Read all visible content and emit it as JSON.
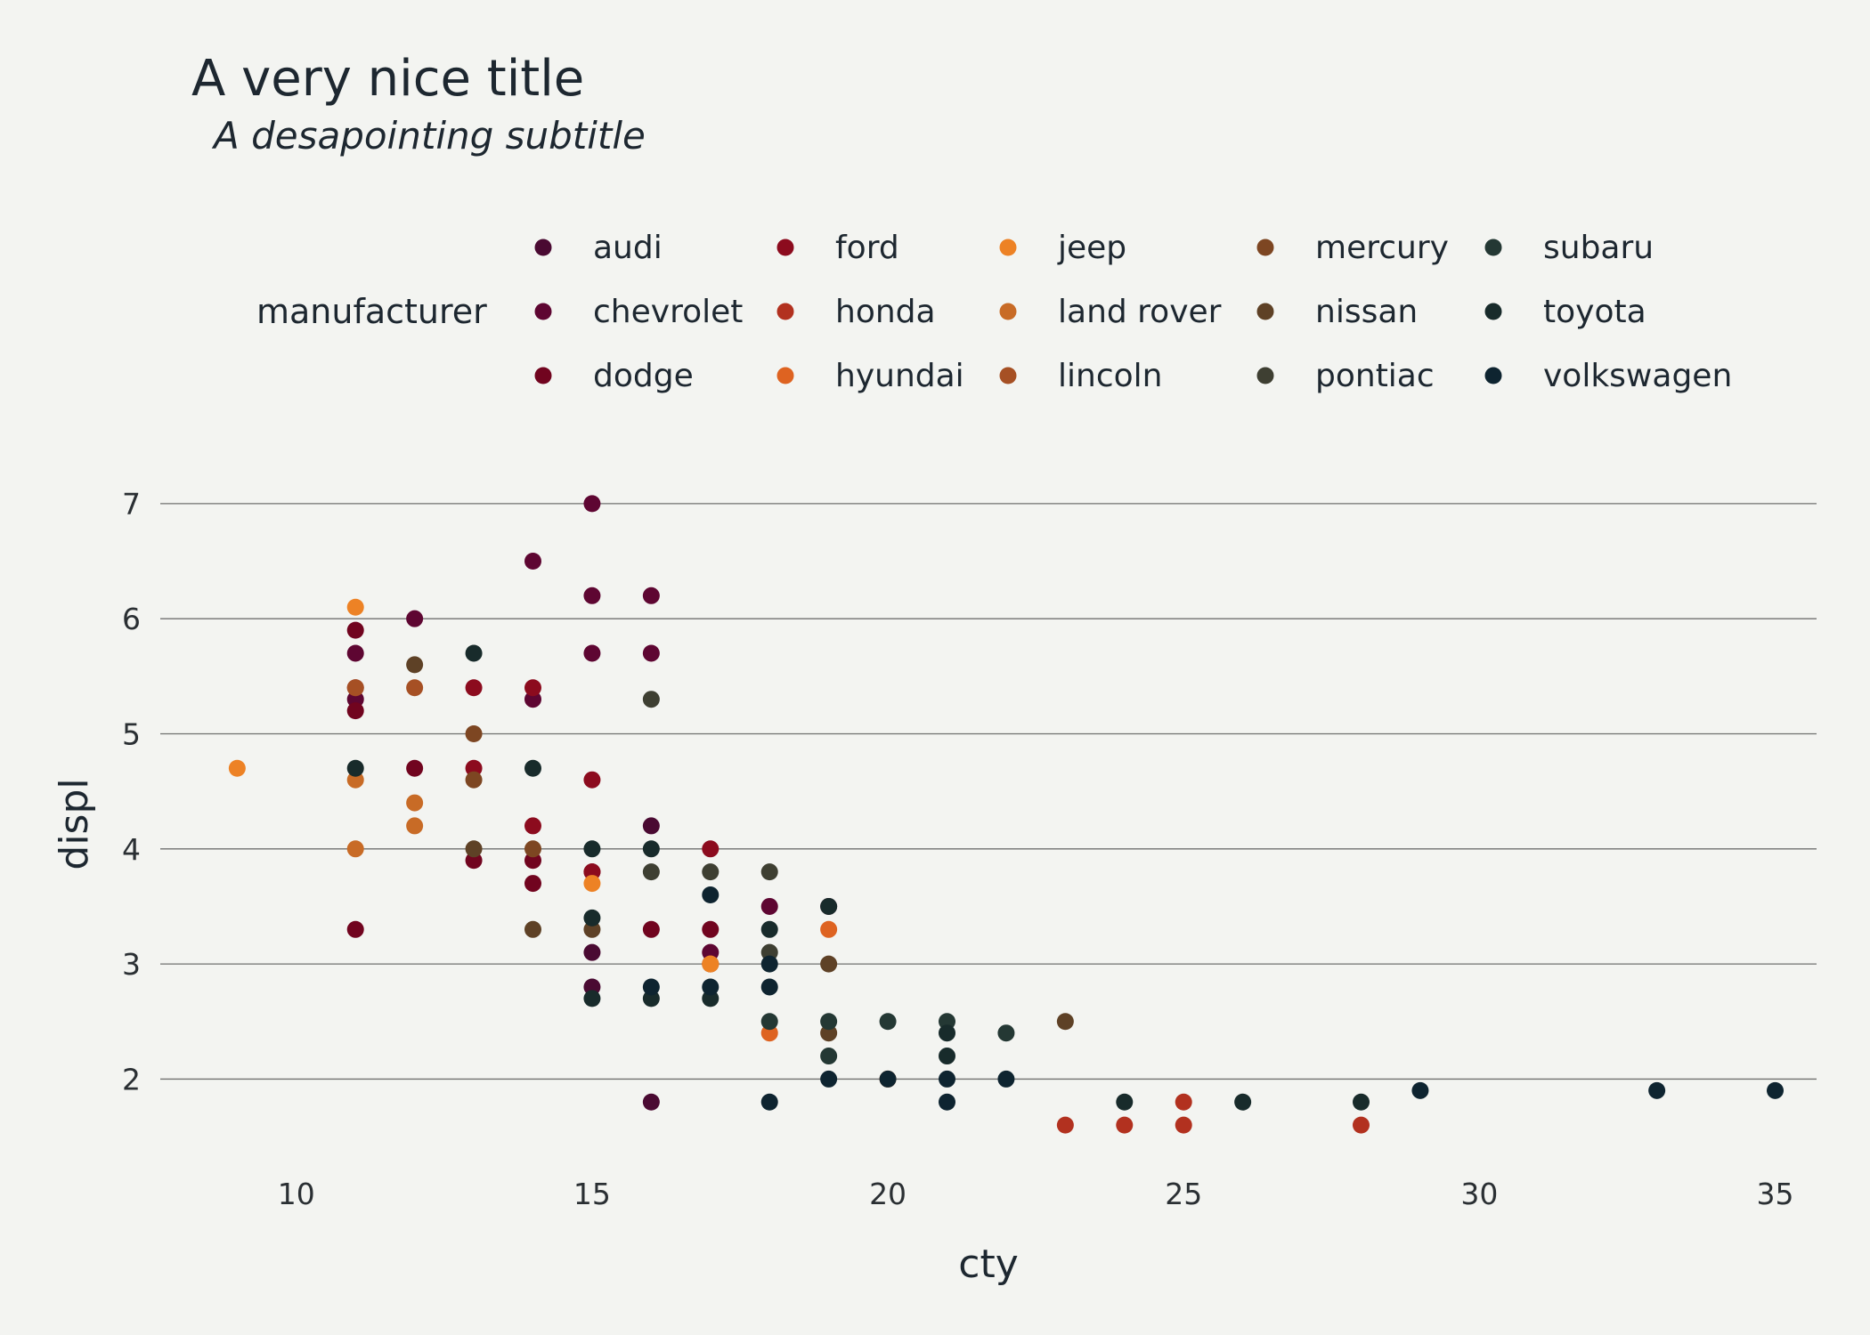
{
  "chart_data": {
    "type": "scatter",
    "title": "A very nice title",
    "subtitle": "A desapointing subtitle",
    "xlabel": "cty",
    "ylabel": "displ",
    "xlim": [
      7.7,
      35.7
    ],
    "ylim": [
      1.4,
      7.2
    ],
    "xticks": [
      10,
      15,
      20,
      25,
      30,
      35
    ],
    "yticks": [
      2,
      3,
      4,
      5,
      6,
      7
    ],
    "grid": "horizontal",
    "legend": {
      "title": "manufacturer",
      "position": "top"
    },
    "series": [
      {
        "name": "audi",
        "color": "#4a0a32",
        "points": [
          [
            16,
            1.8
          ],
          [
            16,
            4.2
          ],
          [
            15,
            2.8
          ],
          [
            15,
            3.1
          ],
          [
            17,
            3.0
          ]
        ]
      },
      {
        "name": "chevrolet",
        "color": "#5e0632",
        "points": [
          [
            15,
            7.0
          ],
          [
            14,
            6.5
          ],
          [
            15,
            6.2
          ],
          [
            16,
            6.2
          ],
          [
            12,
            6.0
          ],
          [
            11,
            5.7
          ],
          [
            15,
            5.7
          ],
          [
            16,
            5.7
          ],
          [
            11,
            5.3
          ],
          [
            14,
            5.3
          ],
          [
            19,
            3.5
          ],
          [
            17,
            3.1
          ],
          [
            18,
            3.5
          ]
        ]
      },
      {
        "name": "dodge",
        "color": "#71041f",
        "points": [
          [
            11,
            5.9
          ],
          [
            11,
            5.2
          ],
          [
            11,
            3.3
          ],
          [
            12,
            4.7
          ],
          [
            13,
            3.9
          ],
          [
            14,
            3.9
          ],
          [
            14,
            3.7
          ],
          [
            15,
            3.8
          ],
          [
            16,
            3.3
          ],
          [
            17,
            3.3
          ]
        ]
      },
      {
        "name": "ford",
        "color": "#8c0b1e",
        "points": [
          [
            13,
            5.4
          ],
          [
            14,
            5.4
          ],
          [
            13,
            4.7
          ],
          [
            14,
            4.2
          ],
          [
            15,
            4.6
          ],
          [
            17,
            4.0
          ],
          [
            15,
            3.8
          ],
          [
            11,
            5.4
          ]
        ]
      },
      {
        "name": "honda",
        "color": "#b2311f",
        "points": [
          [
            23,
            1.6
          ],
          [
            24,
            1.6
          ],
          [
            25,
            1.6
          ],
          [
            25,
            1.8
          ],
          [
            28,
            1.6
          ]
        ]
      },
      {
        "name": "hyundai",
        "color": "#de6321",
        "points": [
          [
            18,
            2.4
          ],
          [
            19,
            3.3
          ],
          [
            20,
            2.0
          ],
          [
            17,
            3.0
          ]
        ]
      },
      {
        "name": "jeep",
        "color": "#ed8225",
        "points": [
          [
            9,
            4.7
          ],
          [
            11,
            6.1
          ],
          [
            15,
            3.7
          ],
          [
            17,
            3.0
          ]
        ]
      },
      {
        "name": "land rover",
        "color": "#c86b26",
        "points": [
          [
            11,
            4.0
          ],
          [
            11,
            4.6
          ],
          [
            12,
            4.2
          ],
          [
            12,
            4.4
          ]
        ]
      },
      {
        "name": "lincoln",
        "color": "#a65024",
        "points": [
          [
            11,
            5.4
          ],
          [
            12,
            5.4
          ]
        ]
      },
      {
        "name": "mercury",
        "color": "#7d4622",
        "points": [
          [
            13,
            4.6
          ],
          [
            13,
            5.0
          ],
          [
            14,
            4.0
          ]
        ]
      },
      {
        "name": "nissan",
        "color": "#5e4126",
        "points": [
          [
            12,
            5.6
          ],
          [
            13,
            4.0
          ],
          [
            14,
            3.3
          ],
          [
            15,
            3.3
          ],
          [
            19,
            3.0
          ],
          [
            19,
            2.4
          ],
          [
            23,
            2.5
          ]
        ]
      },
      {
        "name": "pontiac",
        "color": "#3e3f32",
        "points": [
          [
            16,
            5.3
          ],
          [
            16,
            3.8
          ],
          [
            17,
            3.8
          ],
          [
            18,
            3.8
          ],
          [
            18,
            3.1
          ]
        ]
      },
      {
        "name": "subaru",
        "color": "#243834",
        "points": [
          [
            18,
            2.5
          ],
          [
            19,
            2.5
          ],
          [
            19,
            2.2
          ],
          [
            20,
            2.5
          ],
          [
            21,
            2.5
          ],
          [
            22,
            2.4
          ]
        ]
      },
      {
        "name": "toyota",
        "color": "#182b2b",
        "points": [
          [
            11,
            4.7
          ],
          [
            13,
            5.7
          ],
          [
            14,
            4.7
          ],
          [
            15,
            4.0
          ],
          [
            15,
            3.4
          ],
          [
            15,
            2.7
          ],
          [
            16,
            4.0
          ],
          [
            16,
            2.7
          ],
          [
            17,
            2.7
          ],
          [
            18,
            3.3
          ],
          [
            19,
            3.5
          ],
          [
            21,
            2.4
          ],
          [
            21,
            2.2
          ],
          [
            24,
            1.8
          ],
          [
            26,
            1.8
          ],
          [
            28,
            1.8
          ]
        ]
      },
      {
        "name": "volkswagen",
        "color": "#0e2430",
        "points": [
          [
            16,
            2.8
          ],
          [
            17,
            2.8
          ],
          [
            18,
            2.8
          ],
          [
            18,
            3.0
          ],
          [
            18,
            1.8
          ],
          [
            17,
            3.6
          ],
          [
            19,
            2.0
          ],
          [
            20,
            2.0
          ],
          [
            21,
            2.0
          ],
          [
            21,
            1.8
          ],
          [
            22,
            2.0
          ],
          [
            29,
            1.9
          ],
          [
            33,
            1.9
          ],
          [
            35,
            1.9
          ]
        ]
      }
    ]
  }
}
